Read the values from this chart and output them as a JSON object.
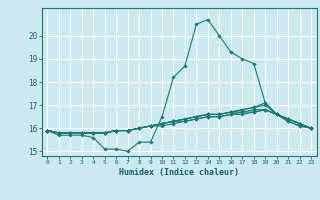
{
  "xlabel": "Humidex (Indice chaleur)",
  "xlim": [
    -0.5,
    23.5
  ],
  "ylim": [
    14.8,
    21.2
  ],
  "yticks": [
    15,
    16,
    17,
    18,
    19,
    20
  ],
  "xticks": [
    0,
    1,
    2,
    3,
    4,
    5,
    6,
    7,
    8,
    9,
    10,
    11,
    12,
    13,
    14,
    15,
    16,
    17,
    18,
    19,
    20,
    21,
    22,
    23
  ],
  "bg_color": "#cce9f0",
  "grid_color": "#ffffff",
  "line_color": "#1a7a6e",
  "lines": [
    [
      15.9,
      15.7,
      15.7,
      15.7,
      15.6,
      15.1,
      15.1,
      15.0,
      15.4,
      15.4,
      16.5,
      18.2,
      18.7,
      20.5,
      20.7,
      20.0,
      19.3,
      19.0,
      18.8,
      17.1,
      16.6,
      16.3,
      16.1,
      16.0
    ],
    [
      15.9,
      15.8,
      15.8,
      15.8,
      15.8,
      15.8,
      15.9,
      15.9,
      16.0,
      16.1,
      16.2,
      16.3,
      16.4,
      16.5,
      16.6,
      16.6,
      16.7,
      16.8,
      16.9,
      17.1,
      16.6,
      16.4,
      16.2,
      16.0
    ],
    [
      15.9,
      15.8,
      15.8,
      15.8,
      15.8,
      15.8,
      15.9,
      15.9,
      16.0,
      16.1,
      16.2,
      16.3,
      16.4,
      16.5,
      16.6,
      16.6,
      16.7,
      16.7,
      16.8,
      16.8,
      16.6,
      16.4,
      16.2,
      16.0
    ],
    [
      15.9,
      15.8,
      15.8,
      15.8,
      15.8,
      15.8,
      15.9,
      15.9,
      16.0,
      16.1,
      16.2,
      16.3,
      16.4,
      16.5,
      16.6,
      16.6,
      16.7,
      16.8,
      16.9,
      17.0,
      16.6,
      16.4,
      16.2,
      16.0
    ],
    [
      15.9,
      15.8,
      15.8,
      15.8,
      15.8,
      15.8,
      15.9,
      15.9,
      16.0,
      16.1,
      16.2,
      16.3,
      16.3,
      16.4,
      16.5,
      16.5,
      16.6,
      16.7,
      16.7,
      16.8,
      16.6,
      16.4,
      16.2,
      16.0
    ],
    [
      15.9,
      15.8,
      15.8,
      15.8,
      15.8,
      15.8,
      15.9,
      15.9,
      16.0,
      16.1,
      16.1,
      16.2,
      16.3,
      16.4,
      16.5,
      16.5,
      16.6,
      16.6,
      16.7,
      16.8,
      16.6,
      16.3,
      16.1,
      16.0
    ]
  ],
  "marker": "D",
  "marker_size": 1.8,
  "line_width": 0.8,
  "tick_color": "#1a5f6e",
  "label_color": "#1a5f6e",
  "xlabel_fontsize": 6.0,
  "xtick_fontsize": 4.5,
  "ytick_fontsize": 5.5
}
